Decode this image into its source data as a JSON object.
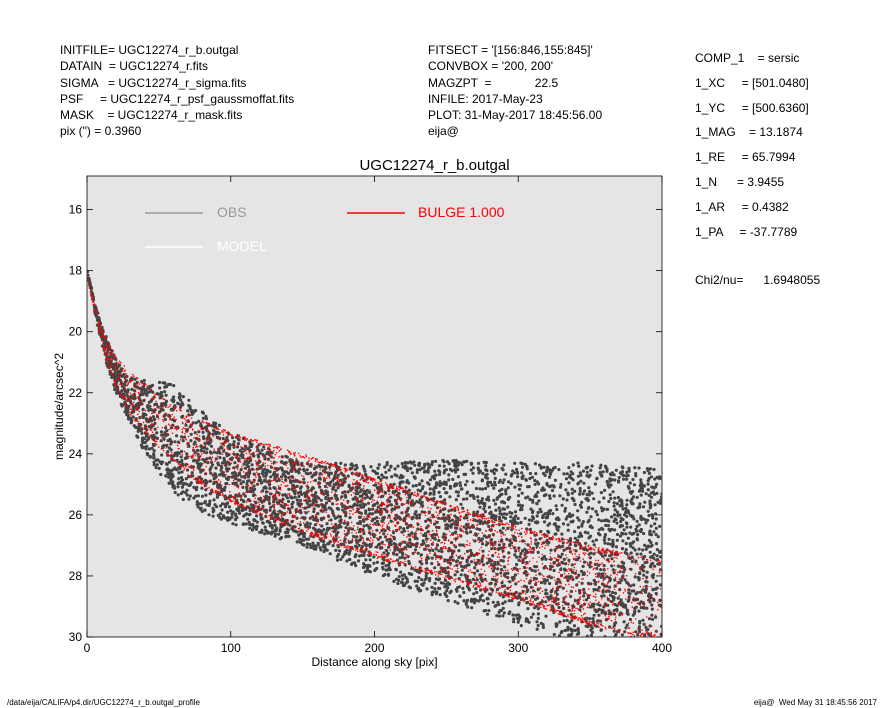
{
  "header_left": [
    {
      "key": "INITFILE=",
      "value": "UGC12274_r_b.outgal"
    },
    {
      "key": "DATAIN  =",
      "value": "UGC12274_r.fits"
    },
    {
      "key": "SIGMA   =",
      "value": "UGC12274_r_sigma.fits"
    },
    {
      "key": "PSF     =",
      "value": "UGC12274_r_psf_gaussmoffat.fits"
    },
    {
      "key": "MASK    =",
      "value": "UGC12274_r_mask.fits"
    },
    {
      "key": "pix (\") =",
      "value": "0.3960"
    }
  ],
  "header_mid": [
    "FITSECT = '[156:846,155:845]'",
    "CONVBOX = '200, 200'",
    "MAGZPT  =             22.5",
    "INFILE: 2017-May-23",
    "PLOT: 31-May-2017 18:45:56.00",
    "eija@"
  ],
  "components": [
    {
      "key": "COMP_1",
      "value": "= sersic"
    },
    {
      "key": "1_XC",
      "value": "= [501.0480]"
    },
    {
      "key": "1_YC",
      "value": "= [500.6360]"
    },
    {
      "key": "1_MAG",
      "value": "= 13.1874"
    },
    {
      "key": "1_RE",
      "value": "= 65.7994"
    },
    {
      "key": "1_N",
      "value": "= 3.9455"
    },
    {
      "key": "1_AR",
      "value": "= 0.4382"
    },
    {
      "key": "1_PA",
      "value": "= -37.7789"
    }
  ],
  "chi2": {
    "label": "Chi2/nu=",
    "value": "1.6948055"
  },
  "footer": {
    "left": "/data/eija/CALIFA/p4.dir/UGC12274_r_b.outgal_profile",
    "right": "eija@  Wed May 31 18:45:56 2017"
  },
  "chart_data": {
    "type": "scatter",
    "title": "UGC12274_r_b.outgal",
    "xlabel": "Distance along sky [pix]",
    "ylabel": "magnitude/arcsec^2",
    "xlim": [
      0,
      400
    ],
    "ylim": [
      30.0,
      14.9
    ],
    "y_inverted": true,
    "xticks": [
      0,
      100,
      200,
      300,
      400
    ],
    "yticks": [
      16,
      18,
      20,
      22,
      24,
      26,
      28,
      30
    ],
    "grid": false,
    "background": "#e5e5e5",
    "legend": [
      {
        "label": "OBS",
        "color": "#999999",
        "position": "top-left"
      },
      {
        "label": "MODEL",
        "color": "#ffffff",
        "position": "top-left"
      },
      {
        "label": "BULGE  1.000",
        "color": "#ff0000",
        "position": "top-center"
      }
    ],
    "series": [
      {
        "name": "OBS",
        "color": "#444444",
        "upper_envelope": [
          [
            0,
            18.0
          ],
          [
            10,
            19.8
          ],
          [
            20,
            20.9
          ],
          [
            30,
            21.5
          ],
          [
            40,
            21.6
          ],
          [
            60,
            21.7
          ],
          [
            80,
            22.6
          ],
          [
            100,
            23.3
          ],
          [
            150,
            24.3
          ],
          [
            200,
            24.3
          ],
          [
            250,
            24.2
          ],
          [
            300,
            24.3
          ],
          [
            350,
            24.3
          ],
          [
            400,
            24.5
          ]
        ],
        "lower_envelope": [
          [
            0,
            18.0
          ],
          [
            10,
            20.5
          ],
          [
            20,
            22.0
          ],
          [
            30,
            23.0
          ],
          [
            40,
            24.0
          ],
          [
            60,
            25.3
          ],
          [
            80,
            25.9
          ],
          [
            100,
            26.3
          ],
          [
            150,
            27.0
          ],
          [
            200,
            28.0
          ],
          [
            250,
            28.8
          ],
          [
            300,
            29.6
          ],
          [
            330,
            30.0
          ],
          [
            400,
            30.0
          ]
        ]
      },
      {
        "name": "BULGE  1.000",
        "color": "#ff0000",
        "upper_envelope": [
          [
            0,
            18.2
          ],
          [
            10,
            19.9
          ],
          [
            20,
            20.8
          ],
          [
            30,
            21.3
          ],
          [
            50,
            22.1
          ],
          [
            75,
            22.8
          ],
          [
            100,
            23.3
          ],
          [
            150,
            24.0
          ],
          [
            200,
            24.8
          ],
          [
            250,
            25.6
          ],
          [
            300,
            26.4
          ],
          [
            350,
            27.0
          ],
          [
            400,
            27.5
          ]
        ],
        "lower_envelope": [
          [
            0,
            18.2
          ],
          [
            10,
            20.4
          ],
          [
            20,
            21.8
          ],
          [
            30,
            22.7
          ],
          [
            50,
            23.8
          ],
          [
            75,
            24.9
          ],
          [
            100,
            25.6
          ],
          [
            150,
            26.6
          ],
          [
            200,
            27.4
          ],
          [
            250,
            28.1
          ],
          [
            300,
            28.8
          ],
          [
            350,
            29.6
          ],
          [
            380,
            30.0
          ]
        ]
      }
    ]
  }
}
